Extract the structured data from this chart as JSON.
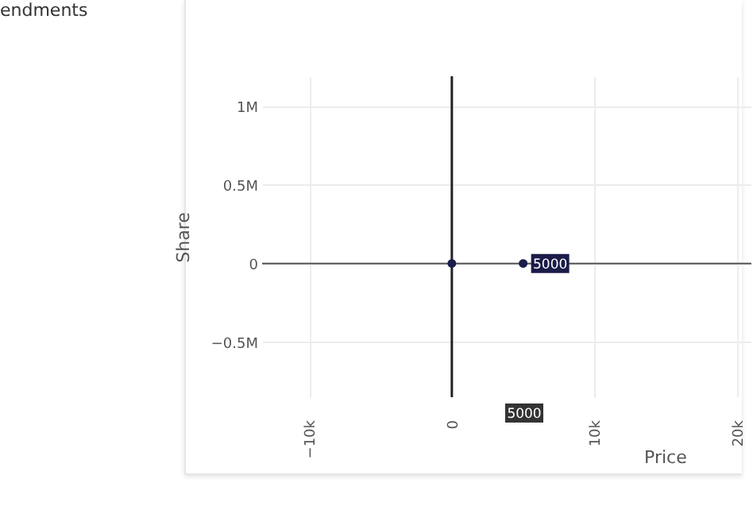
{
  "chart_data": {
    "type": "scatter",
    "xlabel": "Price",
    "ylabel": "Share",
    "x": [
      0,
      5000
    ],
    "series": [
      {
        "color": "#1c1c4a",
        "values": [
          0,
          0
        ]
      }
    ],
    "xlim": [
      -13300,
      21000
    ],
    "xticks": [
      {
        "value": -10000,
        "label": "−10k"
      },
      0,
      {
        "value": 10000,
        "label": "10k"
      },
      {
        "value": 20000,
        "label": "20k"
      }
    ],
    "ylim": [
      -850000,
      1190000
    ],
    "yticks": [
      {
        "value": -500000,
        "label": "−0.5M"
      },
      0,
      {
        "value": 500000,
        "label": "0.5M"
      },
      {
        "value": 1000000,
        "label": "1M"
      }
    ],
    "grid": true,
    "marker": "circle",
    "ref_lines": [
      {
        "axis": "x",
        "value": 0,
        "color": "#222222"
      },
      {
        "axis": "y",
        "value": 0,
        "color": "#555555"
      }
    ],
    "annotations": [
      "endments",
      {
        "text": "5000",
        "x": 5000,
        "y": 0
      },
      "5000"
    ]
  }
}
